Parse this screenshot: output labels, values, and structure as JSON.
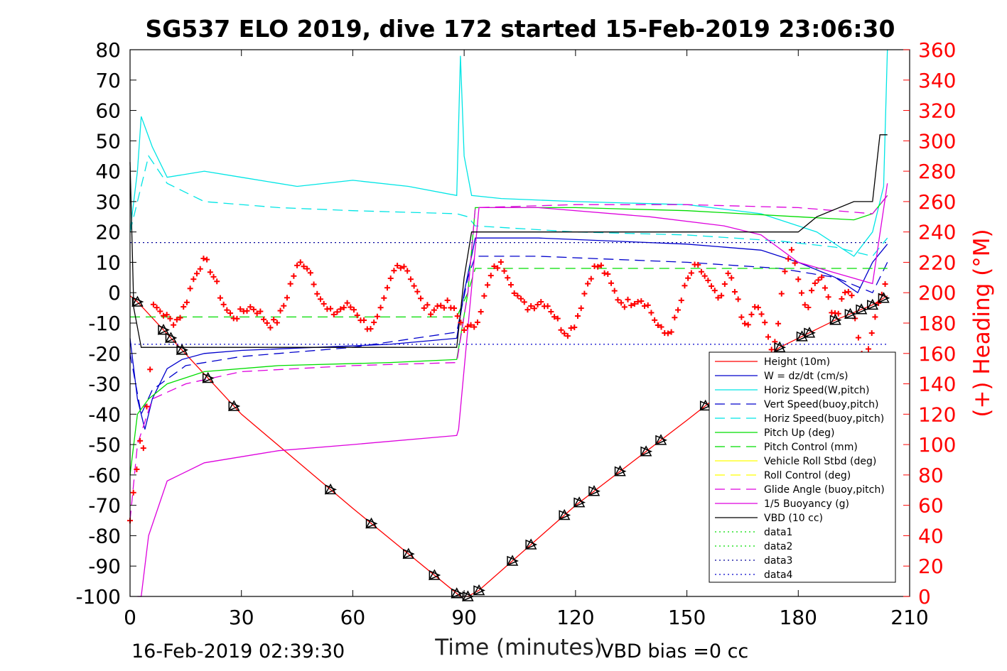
{
  "chart_data": {
    "type": "line",
    "title": "SG537 ELO 2019, dive 172 started 15-Feb-2019 23:06:30",
    "xlabel": "Time (minutes)",
    "ylabel_right": "(+) Heading (°M)",
    "footer_left": "16-Feb-2019 02:39:30",
    "footer_right": "VBD bias =0 cc",
    "xlim": [
      0,
      210
    ],
    "ylim_left": [
      -100,
      80
    ],
    "ylim_right": [
      0,
      360
    ],
    "xticks": [
      "0",
      "30",
      "60",
      "90",
      "120",
      "150",
      "180",
      "210"
    ],
    "yticks_left": [
      "80",
      "70",
      "60",
      "50",
      "40",
      "30",
      "20",
      "10",
      "0",
      "-10",
      "-20",
      "-30",
      "-40",
      "-50",
      "-60",
      "-70",
      "-80",
      "-90",
      "-100"
    ],
    "yticks_right": [
      "360",
      "340",
      "320",
      "300",
      "280",
      "260",
      "240",
      "220",
      "200",
      "180",
      "160",
      "140",
      "120",
      "100",
      "80",
      "60",
      "40",
      "20",
      "0"
    ],
    "colors": {
      "height": "#ff0000",
      "w": "#0000cc",
      "cyan": "#00e5e5",
      "green": "#00dd00",
      "yellow": "#ffff00",
      "magenta": "#dd00dd",
      "black": "#000000",
      "blue_dark": "#000099",
      "heading": "#ff0000"
    },
    "legend": [
      {
        "label": "Height (10m)",
        "color": "#ff0000",
        "style": "solid"
      },
      {
        "label": "W = dz/dt (cm/s)",
        "color": "#0000cc",
        "style": "solid"
      },
      {
        "label": "Horiz Speed(W,pitch)",
        "color": "#00e5e5",
        "style": "solid"
      },
      {
        "label": "Vert Speed(buoy,pitch)",
        "color": "#0000cc",
        "style": "dashed"
      },
      {
        "label": "Horiz Speed(buoy,pitch)",
        "color": "#00e5e5",
        "style": "dashed"
      },
      {
        "label": "Pitch Up (deg)",
        "color": "#00dd00",
        "style": "solid"
      },
      {
        "label": "Pitch Control (mm)",
        "color": "#00dd00",
        "style": "dashed"
      },
      {
        "label": "Vehicle Roll Stbd (deg)",
        "color": "#ffff00",
        "style": "solid"
      },
      {
        "label": "Roll Control (deg)",
        "color": "#ffff00",
        "style": "dashed"
      },
      {
        "label": "Glide Angle (buoy,pitch)",
        "color": "#dd00dd",
        "style": "dashed"
      },
      {
        "label": "1/5 Buoyancy (g)",
        "color": "#dd00dd",
        "style": "solid"
      },
      {
        "label": "VBD (10 cc)",
        "color": "#000000",
        "style": "solid"
      },
      {
        "label": "data1",
        "color": "#00dd00",
        "style": "dotted"
      },
      {
        "label": "data2",
        "color": "#00dd00",
        "style": "dotted"
      },
      {
        "label": "data3",
        "color": "#000099",
        "style": "dotted"
      },
      {
        "label": "data4",
        "color": "#0000cc",
        "style": "dotted"
      }
    ],
    "series": [
      {
        "name": "Height (10m)",
        "x": [
          0,
          2,
          30,
          60,
          89,
          91,
          94,
          120,
          150,
          175,
          190,
          200,
          204
        ],
        "y": [
          -1,
          -3,
          -40,
          -71,
          -100,
          -100,
          -98,
          -70,
          -42,
          -18,
          -9,
          -4,
          -1
        ]
      },
      {
        "name": "W = dz/dt (cm/s)",
        "x": [
          0,
          2,
          4,
          6,
          10,
          14,
          20,
          30,
          50,
          70,
          88,
          90,
          93,
          110,
          130,
          150,
          170,
          180,
          190,
          196,
          200,
          204
        ],
        "y": [
          -15,
          -35,
          -45,
          -35,
          -25,
          -22,
          -20,
          -19,
          -18,
          -17,
          -15,
          0,
          18,
          18,
          17,
          16,
          14,
          10,
          5,
          0,
          10,
          16
        ]
      },
      {
        "name": "Horiz Speed(W,pitch)",
        "x": [
          0,
          2,
          3,
          6,
          10,
          20,
          30,
          45,
          60,
          75,
          88,
          89,
          90,
          92,
          100,
          120,
          150,
          170,
          185,
          195,
          200,
          203,
          204
        ],
        "y": [
          20,
          40,
          58,
          48,
          38,
          40,
          38,
          35,
          37,
          35,
          32,
          78,
          45,
          32,
          31,
          30,
          29,
          26,
          20,
          12,
          20,
          35,
          80
        ]
      },
      {
        "name": "Vert Speed(buoy,pitch)",
        "x": [
          0,
          3,
          6,
          15,
          30,
          60,
          88,
          91,
          93,
          110,
          130,
          150,
          175,
          190,
          200,
          204
        ],
        "y": [
          -20,
          -40,
          -32,
          -24,
          -21,
          -18,
          -13,
          5,
          12,
          12,
          11,
          10,
          8,
          5,
          0,
          10
        ]
      },
      {
        "name": "Horiz Speed(buoy,pitch)",
        "x": [
          0,
          2,
          5,
          10,
          20,
          40,
          60,
          88,
          91,
          93,
          120,
          150,
          175,
          190,
          200,
          204
        ],
        "y": [
          20,
          30,
          45,
          36,
          30,
          28,
          27,
          26,
          25,
          22,
          20,
          19,
          17,
          15,
          12,
          18
        ]
      },
      {
        "name": "Pitch Up (deg)",
        "x": [
          0,
          2,
          5,
          10,
          20,
          40,
          70,
          88,
          91,
          93,
          120,
          150,
          180,
          195,
          200,
          204
        ],
        "y": [
          -60,
          -40,
          -35,
          -30,
          -26,
          -24,
          -23,
          -22,
          0,
          28,
          28,
          27,
          25,
          24,
          26,
          32
        ]
      },
      {
        "name": "Pitch Control (mm)",
        "x": [
          0,
          3,
          88,
          91,
          93,
          204
        ],
        "y": [
          -8,
          -8,
          -8,
          0,
          8,
          8
        ]
      },
      {
        "name": "Glide Angle (buoy,pitch)",
        "x": [
          0,
          2,
          6,
          15,
          30,
          60,
          88,
          91,
          93,
          120,
          150,
          180,
          200,
          204
        ],
        "y": [
          -75,
          -50,
          -35,
          -30,
          -26,
          -24,
          -23,
          0,
          28,
          29,
          29,
          28,
          26,
          32
        ]
      },
      {
        "name": "1/5 Buoyancy (g)",
        "x": [
          2,
          3,
          5,
          10,
          20,
          40,
          60,
          88,
          88.5,
          94,
          110,
          140,
          160,
          170,
          180,
          200,
          204
        ],
        "y": [
          -100,
          -100,
          -80,
          -62,
          -56,
          -52,
          -50,
          -47,
          -45,
          28,
          28,
          25,
          22,
          19,
          10,
          3,
          36
        ]
      },
      {
        "name": "VBD (10 cc)",
        "x": [
          0,
          1,
          3,
          50,
          88,
          90,
          92,
          100,
          180,
          185,
          195,
          200,
          202,
          204
        ],
        "y": [
          43,
          -5,
          -18,
          -18,
          -18,
          5,
          20,
          20,
          20,
          25,
          30,
          30,
          52,
          52
        ]
      },
      {
        "name": "data3",
        "x": [
          0,
          204
        ],
        "y": [
          16.5,
          16.5
        ]
      },
      {
        "name": "data4",
        "x": [
          0,
          204
        ],
        "y": [
          -17,
          -17
        ]
      }
    ]
  }
}
